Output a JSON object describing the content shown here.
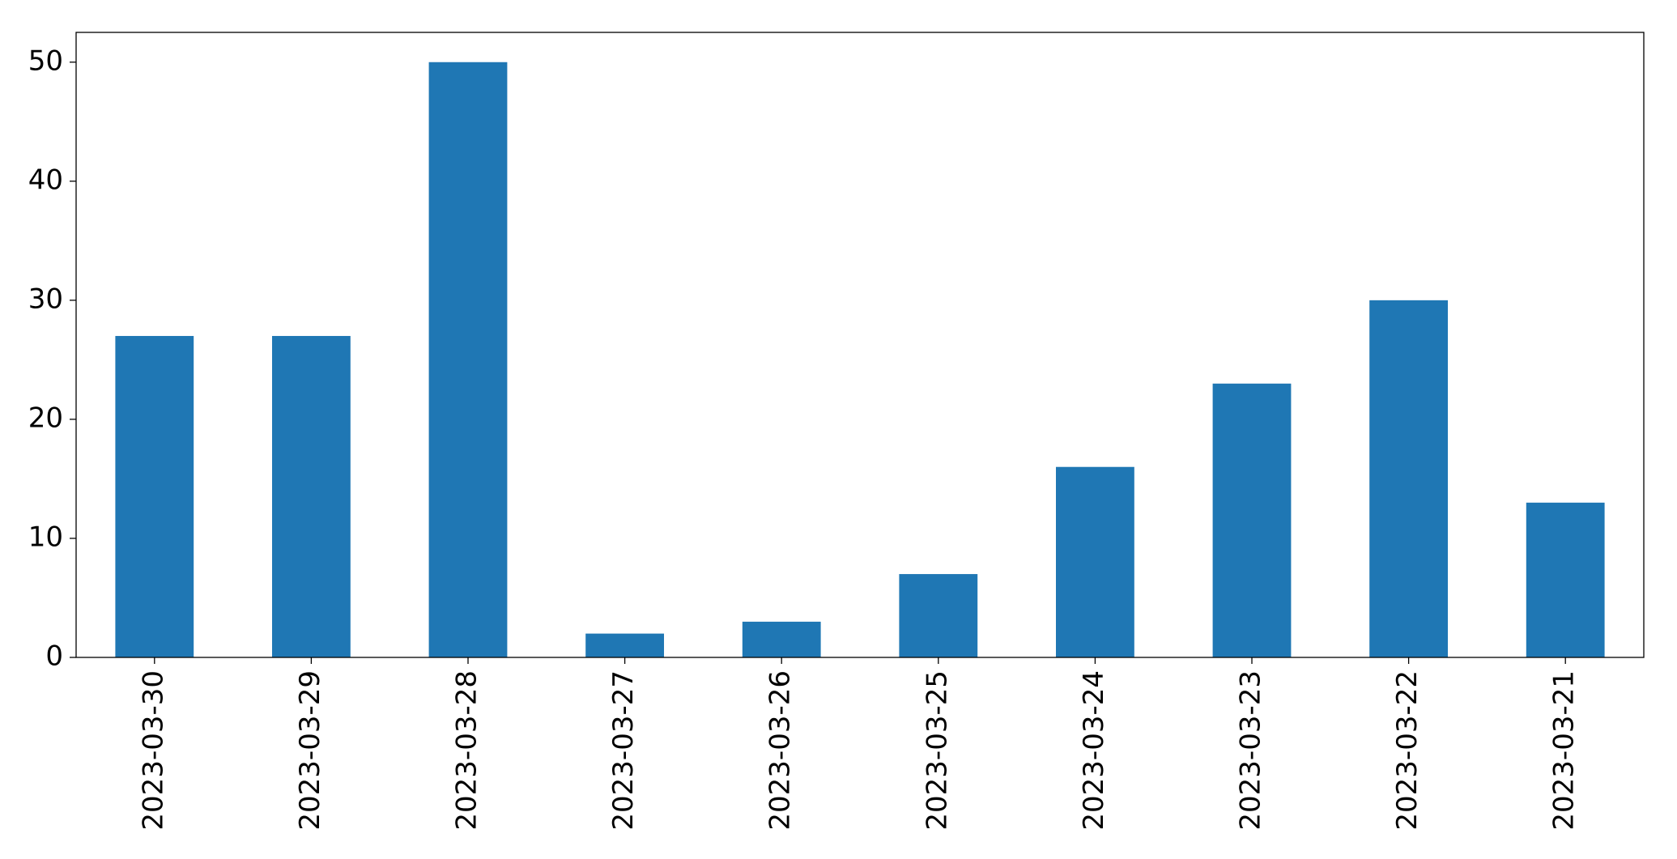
{
  "chart_data": {
    "type": "bar",
    "categories": [
      "2023-03-30",
      "2023-03-29",
      "2023-03-28",
      "2023-03-27",
      "2023-03-26",
      "2023-03-25",
      "2023-03-24",
      "2023-03-23",
      "2023-03-22",
      "2023-03-21"
    ],
    "values": [
      27,
      27,
      50,
      2,
      3,
      7,
      16,
      23,
      30,
      13
    ],
    "color": "#1f77b4",
    "ylim": [
      0,
      52.5
    ],
    "yticks": [
      0,
      10,
      20,
      30,
      40,
      50
    ],
    "grid": false
  }
}
